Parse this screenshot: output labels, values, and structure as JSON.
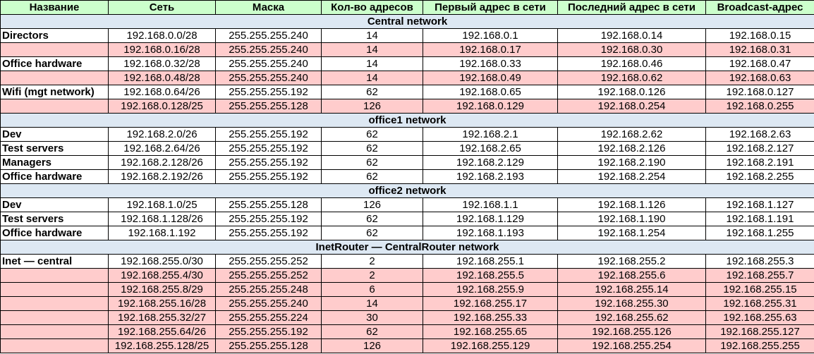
{
  "columns": [
    "Название",
    "Сеть",
    "Маска",
    "Кол-во адресов",
    "Первый адрес в сети",
    "Последний адрес в сети",
    "Broadcast-адрес"
  ],
  "colors": {
    "header_bg": "#ccffcc",
    "section_bg": "#dde8f3",
    "free_row_bg": "#ffcccc",
    "used_row_bg": "#ffffff"
  },
  "sections": [
    {
      "title": "Central network",
      "rows": [
        {
          "name": "Directors",
          "net": "192.168.0.0/28",
          "mask": "255.255.255.240",
          "count": "14",
          "first": "192.168.0.1",
          "last": "192.168.0.14",
          "bcast": "192.168.0.15",
          "highlight": false
        },
        {
          "name": "",
          "net": "192.168.0.16/28",
          "mask": "255.255.255.240",
          "count": "14",
          "first": "192.168.0.17",
          "last": "192.168.0.30",
          "bcast": "192.168.0.31",
          "highlight": true
        },
        {
          "name": "Office hardware",
          "net": "192.168.0.32/28",
          "mask": "255.255.255.240",
          "count": "14",
          "first": "192.168.0.33",
          "last": "192.168.0.46",
          "bcast": "192.168.0.47",
          "highlight": false
        },
        {
          "name": "",
          "net": "192.168.0.48/28",
          "mask": "255.255.255.240",
          "count": "14",
          "first": "192.168.0.49",
          "last": "192.168.0.62",
          "bcast": "192.168.0.63",
          "highlight": true
        },
        {
          "name": "Wifi (mgt network)",
          "net": "192.168.0.64/26",
          "mask": "255.255.255.192",
          "count": "62",
          "first": "192.168.0.65",
          "last": "192.168.0.126",
          "bcast": "192.168.0.127",
          "highlight": false
        },
        {
          "name": "",
          "net": "192.168.0.128/25",
          "mask": "255.255.255.128",
          "count": "126",
          "first": "192.168.0.129",
          "last": "192.168.0.254",
          "bcast": "192.168.0.255",
          "highlight": true
        }
      ]
    },
    {
      "title": "office1 network",
      "rows": [
        {
          "name": "Dev",
          "net": "192.168.2.0/26",
          "mask": "255.255.255.192",
          "count": "62",
          "first": "192.168.2.1",
          "last": "192.168.2.62",
          "bcast": "192.168.2.63",
          "highlight": false
        },
        {
          "name": "Test servers",
          "net": "192.168.2.64/26",
          "mask": "255.255.255.192",
          "count": "62",
          "first": "192.168.2.65",
          "last": "192.168.2.126",
          "bcast": "192.168.2.127",
          "highlight": false
        },
        {
          "name": "Managers",
          "net": "192.168.2.128/26",
          "mask": "255.255.255.192",
          "count": "62",
          "first": "192.168.2.129",
          "last": "192.168.2.190",
          "bcast": "192.168.2.191",
          "highlight": false
        },
        {
          "name": "Office hardware",
          "net": "192.168.2.192/26",
          "mask": "255.255.255.192",
          "count": "62",
          "first": "192.168.2.193",
          "last": "192.168.2.254",
          "bcast": "192.168.2.255",
          "highlight": false
        }
      ]
    },
    {
      "title": "office2 network",
      "rows": [
        {
          "name": "Dev",
          "net": "192.168.1.0/25",
          "mask": "255.255.255.128",
          "count": "126",
          "first": "192.168.1.1",
          "last": "192.168.1.126",
          "bcast": "192.168.1.127",
          "highlight": false
        },
        {
          "name": "Test servers",
          "net": "192.168.1.128/26",
          "mask": "255.255.255.192",
          "count": "62",
          "first": "192.168.1.129",
          "last": "192.168.1.190",
          "bcast": "192.168.1.191",
          "highlight": false
        },
        {
          "name": "Office hardware",
          "net": "192.168.1.192",
          "mask": "255.255.255.192",
          "count": "62",
          "first": "192.168.1.193",
          "last": "192.168.1.254",
          "bcast": "192.168.1.255",
          "highlight": false
        }
      ]
    },
    {
      "title": "InetRouter — CentralRouter network",
      "rows": [
        {
          "name": "Inet — central",
          "net": "192.168.255.0/30",
          "mask": "255.255.255.252",
          "count": "2",
          "first": "192.168.255.1",
          "last": "192.168.255.2",
          "bcast": "192.168.255.3",
          "highlight": false
        },
        {
          "name": "",
          "net": "192.168.255.4/30",
          "mask": "255.255.255.252",
          "count": "2",
          "first": "192.168.255.5",
          "last": "192.168.255.6",
          "bcast": "192.168.255.7",
          "highlight": true
        },
        {
          "name": "",
          "net": "192.168.255.8/29",
          "mask": "255.255.255.248",
          "count": "6",
          "first": "192.168.255.9",
          "last": "192.168.255.14",
          "bcast": "192.168.255.15",
          "highlight": true
        },
        {
          "name": "",
          "net": "192.168.255.16/28",
          "mask": "255.255.255.240",
          "count": "14",
          "first": "192.168.255.17",
          "last": "192.168.255.30",
          "bcast": "192.168.255.31",
          "highlight": true
        },
        {
          "name": "",
          "net": "192.168.255.32/27",
          "mask": "255.255.255.224",
          "count": "30",
          "first": "192.168.255.33",
          "last": "192.168.255.62",
          "bcast": "192.168.255.63",
          "highlight": true
        },
        {
          "name": "",
          "net": "192.168.255.64/26",
          "mask": "255.255.255.192",
          "count": "62",
          "first": "192.168.255.65",
          "last": "192.168.255.126",
          "bcast": "192.168.255.127",
          "highlight": true
        },
        {
          "name": "",
          "net": "192.168.255.128/25",
          "mask": "255.255.255.128",
          "count": "126",
          "first": "192.168.255.129",
          "last": "192.168.255.254",
          "bcast": "192.168.255.255",
          "highlight": true
        }
      ]
    }
  ]
}
